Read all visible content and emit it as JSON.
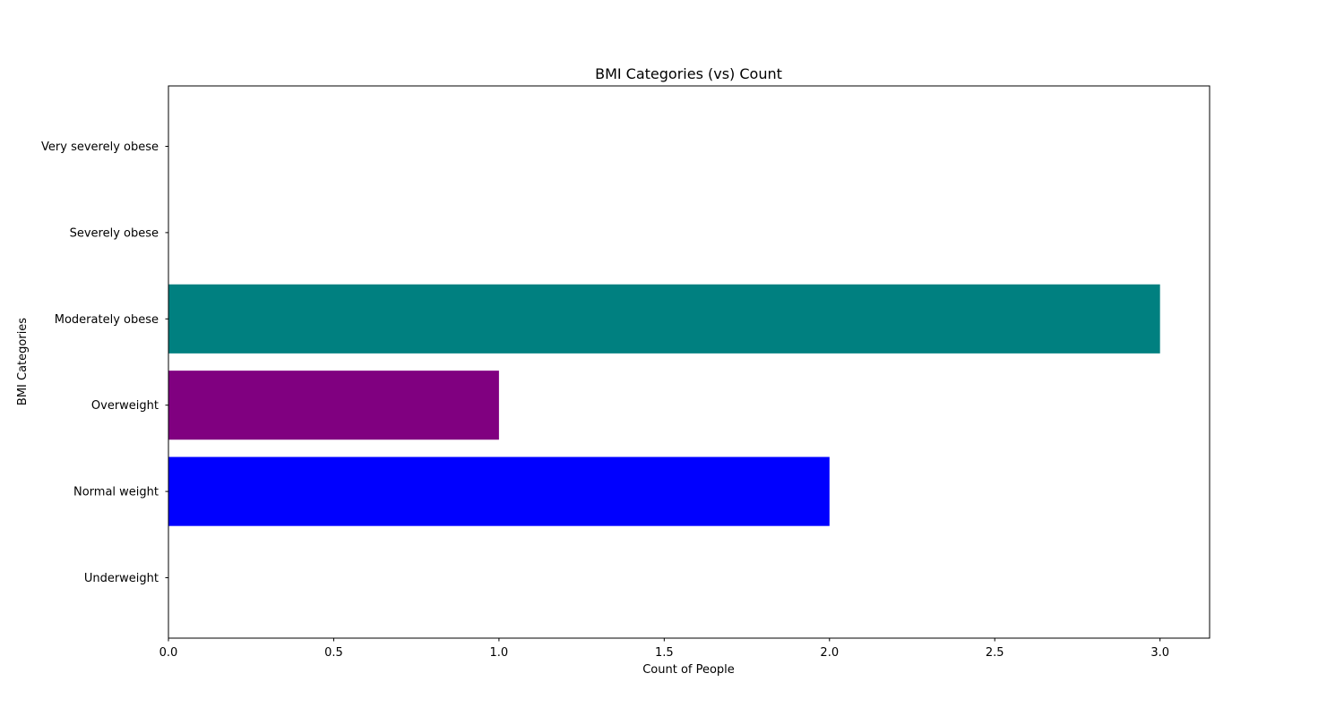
{
  "chart_data": {
    "type": "bar",
    "orientation": "horizontal",
    "title": "BMI Categories (vs) Count",
    "xlabel": "Count of People",
    "ylabel": "BMI Categories",
    "categories": [
      "Underweight",
      "Normal weight",
      "Overweight",
      "Moderately obese",
      "Severely obese",
      "Very severely obese"
    ],
    "values": [
      0,
      2,
      1,
      3,
      0,
      0
    ],
    "colors": [
      "#ff0000",
      "#0000ff",
      "#800080",
      "#008080",
      "#ff8c00",
      "#008000"
    ],
    "xlim": [
      0,
      3.15
    ],
    "xticks": [
      {
        "value": 0.0,
        "label": "0.0"
      },
      {
        "value": 0.5,
        "label": "0.5"
      },
      {
        "value": 1.0,
        "label": "1.0"
      },
      {
        "value": 1.5,
        "label": "1.5"
      },
      {
        "value": 2.0,
        "label": "2.0"
      },
      {
        "value": 2.5,
        "label": "2.5"
      },
      {
        "value": 3.0,
        "label": "3.0"
      }
    ],
    "grid": false,
    "legend": "none"
  }
}
